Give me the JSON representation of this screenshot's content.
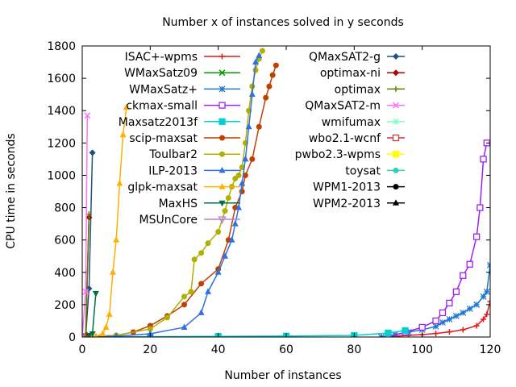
{
  "chart_data": {
    "type": "line",
    "title": "Number x of instances solved in y seconds",
    "xlabel": "Number of instances",
    "ylabel": "CPU time in seconds",
    "xlim": [
      0,
      120
    ],
    "ylim": [
      0,
      1800
    ],
    "x_ticks": [
      0,
      20,
      40,
      60,
      80,
      100,
      120
    ],
    "y_ticks": [
      0,
      200,
      400,
      600,
      800,
      1000,
      1200,
      1400,
      1600,
      1800
    ],
    "grid": false,
    "legend_position": "top-center",
    "series": [
      {
        "name": "ISAC+-wpms",
        "color": "#e41a1c",
        "marker": "plus",
        "x": [
          88,
          92,
          96,
          100,
          104,
          108,
          112,
          116,
          118,
          119,
          120
        ],
        "y": [
          0,
          5,
          10,
          15,
          22,
          32,
          45,
          70,
          110,
          140,
          220
        ]
      },
      {
        "name": "WMaxSatz09",
        "color": "#009e00",
        "marker": "cross",
        "x": [
          0,
          1,
          2
        ],
        "y": [
          0,
          5,
          15
        ]
      },
      {
        "name": "WMaxSatz+",
        "color": "#1f78d1",
        "marker": "star",
        "x": [
          88,
          92,
          96,
          100,
          104,
          106,
          108,
          110,
          112,
          114,
          116,
          118,
          119,
          120
        ],
        "y": [
          0,
          15,
          30,
          45,
          65,
          90,
          110,
          130,
          150,
          175,
          200,
          250,
          280,
          445
        ]
      },
      {
        "name": "ckmax-small",
        "color": "#a020f0",
        "marker": "open-square",
        "x": [
          90,
          95,
          100,
          104,
          106,
          108,
          110,
          112,
          114,
          116,
          117,
          118,
          119
        ],
        "y": [
          0,
          30,
          60,
          100,
          150,
          210,
          280,
          380,
          450,
          620,
          800,
          1100,
          1200
        ]
      },
      {
        "name": "Maxsatz2013f",
        "color": "#00d0d0",
        "marker": "filled-square",
        "x": [
          0,
          20,
          40,
          60,
          80,
          90,
          95
        ],
        "y": [
          0,
          2,
          4,
          6,
          10,
          25,
          40
        ]
      },
      {
        "name": "scip-maxsat",
        "color": "#c04000",
        "marker": "filled-circle",
        "x": [
          0,
          10,
          15,
          20,
          25,
          30,
          35,
          40,
          43,
          45,
          47,
          48,
          50,
          52,
          54,
          55,
          56,
          57
        ],
        "y": [
          0,
          10,
          30,
          70,
          130,
          200,
          330,
          420,
          600,
          800,
          900,
          1000,
          1100,
          1300,
          1480,
          1550,
          1620,
          1680
        ]
      },
      {
        "name": "Toulbar2",
        "color": "#b0b000",
        "marker": "filled-circle",
        "x": [
          0,
          10,
          20,
          25,
          30,
          32,
          33,
          35,
          37,
          40,
          42,
          43,
          44,
          45,
          46,
          47,
          48,
          49,
          50,
          51,
          52,
          53
        ],
        "y": [
          0,
          10,
          50,
          120,
          250,
          280,
          480,
          520,
          580,
          650,
          780,
          860,
          930,
          980,
          1000,
          1050,
          1200,
          1400,
          1550,
          1650,
          1720,
          1770
        ]
      },
      {
        "name": "ILP-2013",
        "color": "#3070e0",
        "marker": "filled-triangle",
        "x": [
          0,
          10,
          20,
          30,
          35,
          37,
          40,
          42,
          44,
          45,
          46,
          47,
          48,
          49,
          50,
          51,
          52
        ],
        "y": [
          0,
          5,
          20,
          60,
          150,
          280,
          400,
          500,
          600,
          700,
          800,
          950,
          1100,
          1300,
          1500,
          1700,
          1740
        ]
      },
      {
        "name": "glpk-maxsat",
        "color": "#ffb000",
        "marker": "filled-triangle",
        "x": [
          0,
          4,
          6,
          7,
          8,
          9,
          10,
          11,
          12,
          13
        ],
        "y": [
          0,
          5,
          20,
          60,
          140,
          400,
          600,
          950,
          1250,
          1420
        ]
      },
      {
        "name": "MaxHS",
        "color": "#007040",
        "marker": "filled-down-triangle",
        "x": [
          0,
          1,
          2,
          3,
          4
        ],
        "y": [
          0,
          5,
          10,
          20,
          270
        ]
      },
      {
        "name": "MSUnCore",
        "color": "#b080e0",
        "marker": "down-triangle",
        "x": [],
        "y": []
      },
      {
        "name": "QMaxSAT2-g",
        "color": "#205080",
        "marker": "filled-diamond",
        "x": [
          0,
          1,
          2,
          3
        ],
        "y": [
          0,
          5,
          300,
          1140
        ]
      },
      {
        "name": "optimax-ni",
        "color": "#b00000",
        "marker": "filled-diamond",
        "x": [
          0,
          1,
          2
        ],
        "y": [
          0,
          10,
          740
        ]
      },
      {
        "name": "optimax",
        "color": "#608000",
        "marker": "plus",
        "x": [
          0,
          1,
          2
        ],
        "y": [
          0,
          5,
          760
        ]
      },
      {
        "name": "QMaxSAT2-m",
        "color": "#ff70ff",
        "marker": "cross",
        "x": [
          0,
          1,
          1.5
        ],
        "y": [
          0,
          280,
          1370
        ]
      },
      {
        "name": "wmifumax",
        "color": "#80ffc0",
        "marker": "star",
        "x": [],
        "y": []
      },
      {
        "name": "wbo2.1-wcnf",
        "color": "#c04040",
        "marker": "open-square",
        "x": [],
        "y": []
      },
      {
        "name": "pwbo2.3-wpms",
        "color": "#ffff00",
        "marker": "filled-square",
        "x": [],
        "y": []
      },
      {
        "name": "toysat",
        "color": "#30d0c0",
        "marker": "filled-circle",
        "x": [],
        "y": []
      },
      {
        "name": "WPM1-2013",
        "color": "#000000",
        "marker": "filled-circle",
        "x": [],
        "y": []
      },
      {
        "name": "WPM2-2013",
        "color": "#000000",
        "marker": "filled-triangle",
        "x": [],
        "y": []
      }
    ]
  }
}
